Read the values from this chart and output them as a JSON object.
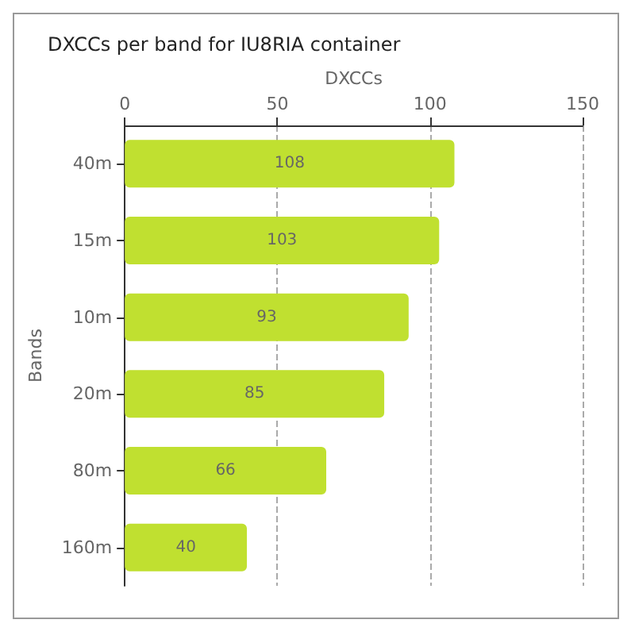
{
  "chart_data": {
    "type": "bar",
    "orientation": "horizontal",
    "title": "DXCCs per band for IU8RIA container",
    "xlabel": "DXCCs",
    "ylabel": "Bands",
    "categories": [
      "40m",
      "15m",
      "10m",
      "20m",
      "80m",
      "160m"
    ],
    "values": [
      108,
      103,
      93,
      85,
      66,
      40
    ],
    "color": "#c0e030",
    "xlim": [
      0,
      150
    ],
    "xticks": [
      0,
      50,
      100,
      150
    ],
    "grid": "x",
    "data_labels": true
  }
}
